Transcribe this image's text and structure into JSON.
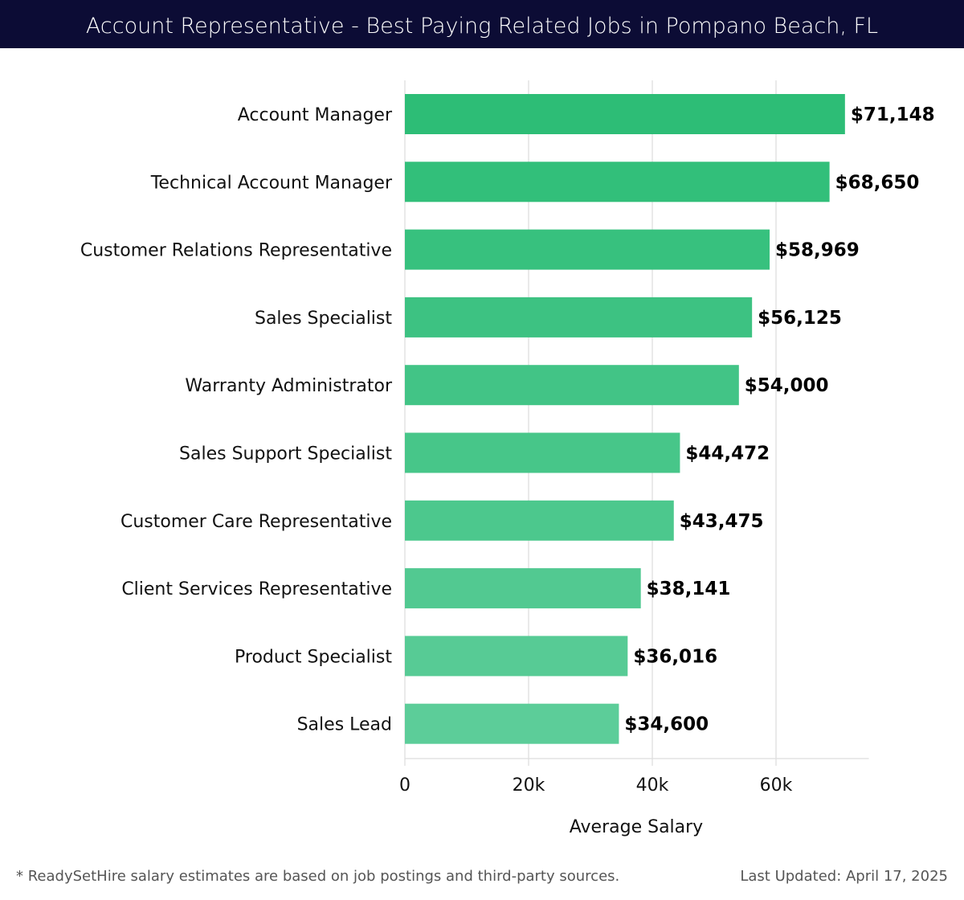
{
  "header": {
    "title": "Account Representative - Best Paying Related Jobs in Pompano Beach, FL"
  },
  "chart_data": {
    "type": "bar",
    "orientation": "horizontal",
    "title": "Account Representative - Best Paying Related Jobs in Pompano Beach, FL",
    "categories": [
      "Account Manager",
      "Technical Account Manager",
      "Customer Relations Representative",
      "Sales Specialist",
      "Warranty Administrator",
      "Sales Support Specialist",
      "Customer Care Representative",
      "Client Services Representative",
      "Product Specialist",
      "Sales Lead"
    ],
    "values": [
      71148,
      68650,
      58969,
      56125,
      54000,
      44472,
      43475,
      38141,
      36016,
      34600
    ],
    "labels": [
      "$71,148",
      "$68,650",
      "$58,969",
      "$56,125",
      "$54,000",
      "$44,472",
      "$43,475",
      "$38,141",
      "$36,016",
      "$34,600"
    ],
    "xlabel": "Average Salary",
    "ylabel": "",
    "xlim": [
      0,
      75000
    ],
    "xticks": [
      0,
      20000,
      40000,
      60000
    ],
    "xtick_labels": [
      "0",
      "20k",
      "40k",
      "60k"
    ],
    "grid": true,
    "colors": {
      "top": "#2dbd76",
      "bottom": "#5ccd99"
    }
  },
  "footer": {
    "note": "* ReadySetHire salary estimates are based on job postings and third-party sources.",
    "updated": "Last Updated: April 17, 2025"
  }
}
